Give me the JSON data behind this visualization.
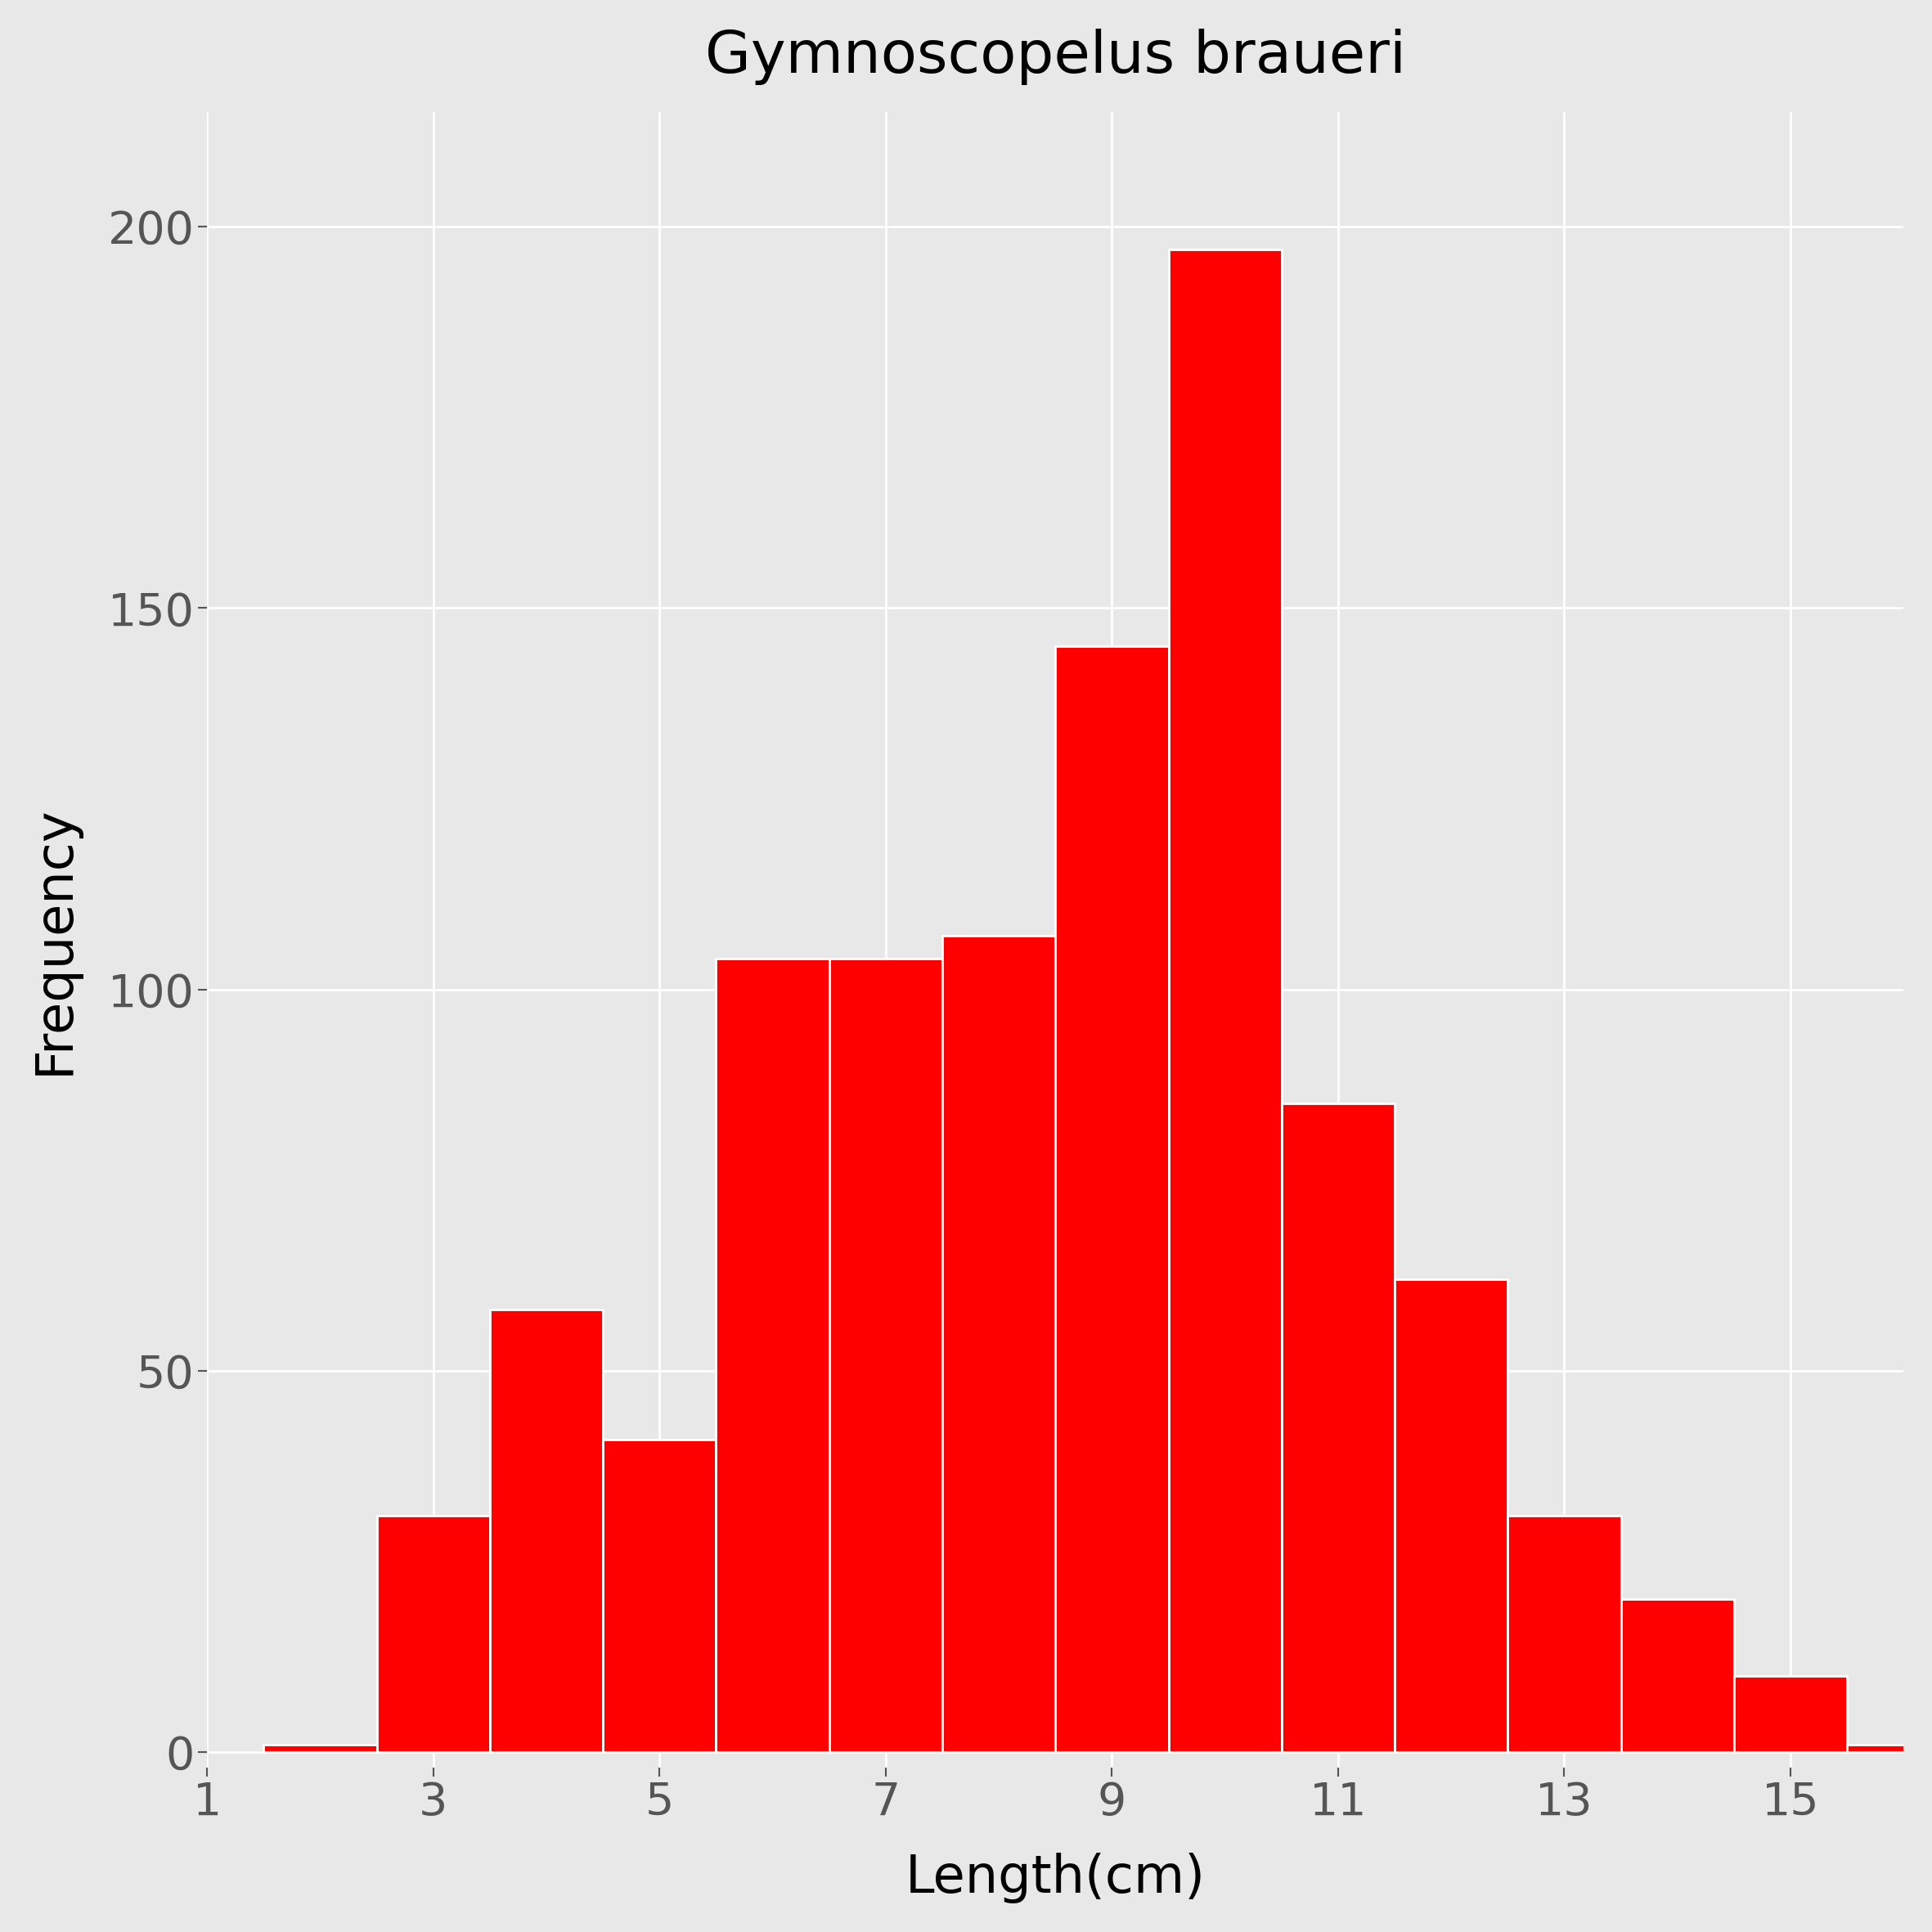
{
  "title": "Gymnoscopelus braueri",
  "xlabel": "Length(cm)",
  "ylabel": "Frequency",
  "bar_color": "#FF0000",
  "background_color": "#E8E8E8",
  "bar_edge_color": "white",
  "bar_heights": [
    1,
    31,
    58,
    41,
    104,
    104,
    107,
    145,
    197,
    85,
    62,
    31,
    20,
    10,
    1
  ],
  "bar_lefts": [
    1.5,
    2.5,
    3.5,
    4.5,
    5.5,
    6.5,
    7.5,
    8.5,
    9.5,
    10.5,
    11.5,
    12.5,
    13.5,
    14.5,
    15.5
  ],
  "xlim": [
    1,
    16
  ],
  "ylim": [
    -2,
    215
  ],
  "xticks": [
    1,
    3,
    5,
    7,
    9,
    11,
    13,
    15
  ],
  "yticks": [
    0,
    50,
    100,
    150,
    200
  ],
  "bar_width": 1.0,
  "title_fontsize": 52,
  "axis_label_fontsize": 46,
  "tick_fontsize": 40,
  "grid_color": "#FFFFFF",
  "grid_linewidth": 2.0
}
